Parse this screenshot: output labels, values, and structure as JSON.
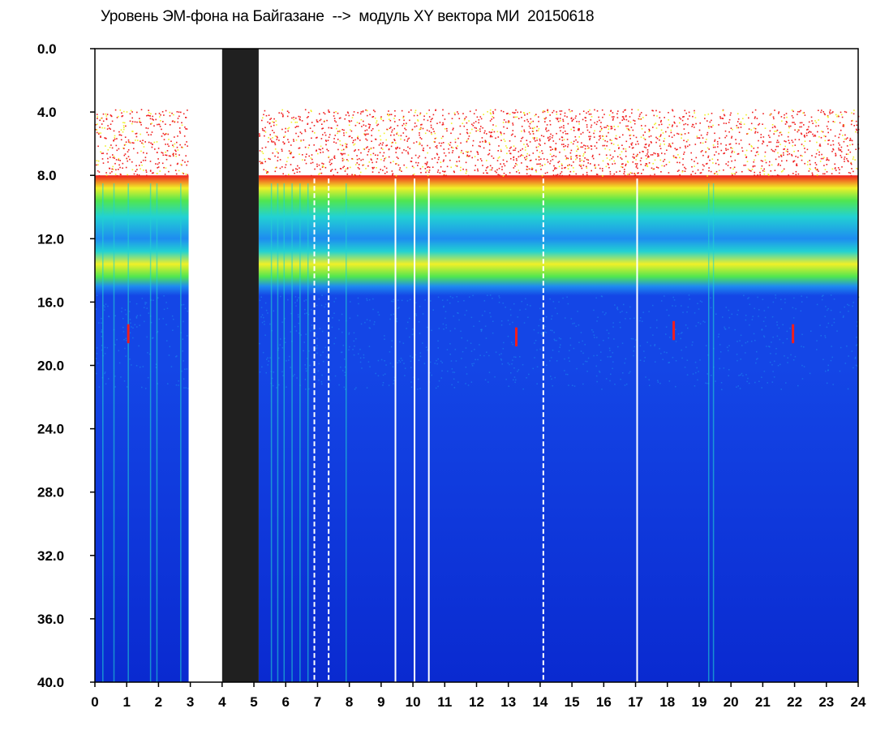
{
  "chart_data": {
    "type": "heatmap",
    "title": "Уровень ЭМ-фона на Байгазане  -->  модуль XY вектора МИ  20150618",
    "xlabel": "",
    "ylabel": "",
    "xlim": [
      0,
      24
    ],
    "ylim": [
      0.0,
      40.0
    ],
    "y_inverted": true,
    "x_ticks": [
      "0",
      "1",
      "2",
      "3",
      "4",
      "5",
      "6",
      "7",
      "8",
      "9",
      "10",
      "11",
      "12",
      "13",
      "14",
      "15",
      "16",
      "17",
      "18",
      "19",
      "20",
      "21",
      "22",
      "23",
      "24"
    ],
    "y_ticks": [
      "0.0",
      "4.0",
      "8.0",
      "12.0",
      "16.0",
      "20.0",
      "24.0",
      "28.0",
      "32.0",
      "36.0",
      "40.0"
    ],
    "grid": false,
    "colors": {
      "background_low": "#0a2ad0",
      "low": "#1446e6",
      "mid_low": "#1e8cf0",
      "mid": "#22d2d2",
      "mid_high": "#50e650",
      "high": "#f0f028",
      "peak": "#f01e1e",
      "gap_dark": "#202020"
    },
    "gaps": [
      {
        "x_start": 2.95,
        "x_end": 4.0,
        "fill": "white"
      },
      {
        "x_start": 4.0,
        "x_end": 5.15,
        "fill": "dark"
      }
    ],
    "band_profile": [
      {
        "y_from": 4.0,
        "y_to": 8.0,
        "level": "sparse-peak"
      },
      {
        "y_from": 8.0,
        "y_to": 9.0,
        "level": "peak"
      },
      {
        "y_from": 9.0,
        "y_to": 11.0,
        "level": "high"
      },
      {
        "y_from": 11.0,
        "y_to": 12.5,
        "level": "mid"
      },
      {
        "y_from": 12.5,
        "y_to": 14.5,
        "level": "mid_high"
      },
      {
        "y_from": 14.5,
        "y_to": 15.3,
        "level": "mid_low"
      },
      {
        "y_from": 15.3,
        "y_to": 40.0,
        "level": "low"
      }
    ],
    "white_vertical_lines": [
      6.9,
      7.35,
      9.45,
      10.05,
      10.5,
      14.1,
      17.05
    ],
    "dashed_vertical_lines": [
      6.9,
      7.35,
      14.1
    ],
    "spikes": [
      {
        "x": 1.05,
        "y": 18.0
      },
      {
        "x": 13.25,
        "y": 18.2
      },
      {
        "x": 18.2,
        "y": 17.8
      },
      {
        "x": 21.95,
        "y": 18.0
      }
    ]
  }
}
